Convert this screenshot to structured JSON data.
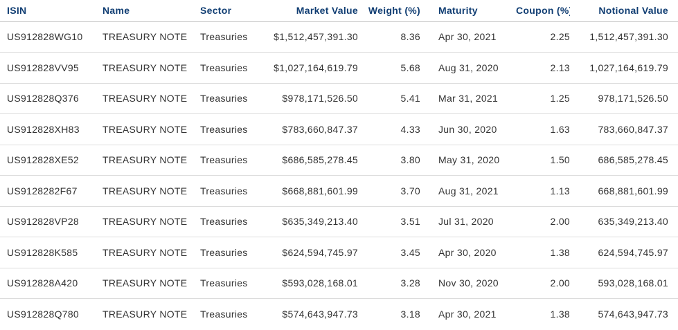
{
  "table": {
    "columns": [
      {
        "key": "isin",
        "label": "ISIN"
      },
      {
        "key": "name",
        "label": "Name"
      },
      {
        "key": "sector",
        "label": "Sector"
      },
      {
        "key": "market_value",
        "label": "Market Value"
      },
      {
        "key": "weight",
        "label": "Weight (%)"
      },
      {
        "key": "maturity",
        "label": "Maturity"
      },
      {
        "key": "coupon",
        "label": "Coupon (%)"
      },
      {
        "key": "notional_value",
        "label": "Notional Value"
      }
    ],
    "rows": [
      {
        "isin": "US912828WG10",
        "name": "TREASURY NOTE",
        "sector": "Treasuries",
        "market_value": "$1,512,457,391.30",
        "weight": "8.36",
        "maturity": "Apr 30, 2021",
        "coupon": "2.25",
        "notional_value": "1,512,457,391.30"
      },
      {
        "isin": "US912828VV95",
        "name": "TREASURY NOTE",
        "sector": "Treasuries",
        "market_value": "$1,027,164,619.79",
        "weight": "5.68",
        "maturity": "Aug 31, 2020",
        "coupon": "2.13",
        "notional_value": "1,027,164,619.79"
      },
      {
        "isin": "US912828Q376",
        "name": "TREASURY NOTE",
        "sector": "Treasuries",
        "market_value": "$978,171,526.50",
        "weight": "5.41",
        "maturity": "Mar 31, 2021",
        "coupon": "1.25",
        "notional_value": "978,171,526.50"
      },
      {
        "isin": "US912828XH83",
        "name": "TREASURY NOTE",
        "sector": "Treasuries",
        "market_value": "$783,660,847.37",
        "weight": "4.33",
        "maturity": "Jun 30, 2020",
        "coupon": "1.63",
        "notional_value": "783,660,847.37"
      },
      {
        "isin": "US912828XE52",
        "name": "TREASURY NOTE",
        "sector": "Treasuries",
        "market_value": "$686,585,278.45",
        "weight": "3.80",
        "maturity": "May 31, 2020",
        "coupon": "1.50",
        "notional_value": "686,585,278.45"
      },
      {
        "isin": "US9128282F67",
        "name": "TREASURY NOTE",
        "sector": "Treasuries",
        "market_value": "$668,881,601.99",
        "weight": "3.70",
        "maturity": "Aug 31, 2021",
        "coupon": "1.13",
        "notional_value": "668,881,601.99"
      },
      {
        "isin": "US912828VP28",
        "name": "TREASURY NOTE",
        "sector": "Treasuries",
        "market_value": "$635,349,213.40",
        "weight": "3.51",
        "maturity": "Jul 31, 2020",
        "coupon": "2.00",
        "notional_value": "635,349,213.40"
      },
      {
        "isin": "US912828K585",
        "name": "TREASURY NOTE",
        "sector": "Treasuries",
        "market_value": "$624,594,745.97",
        "weight": "3.45",
        "maturity": "Apr 30, 2020",
        "coupon": "1.38",
        "notional_value": "624,594,745.97"
      },
      {
        "isin": "US912828A420",
        "name": "TREASURY NOTE",
        "sector": "Treasuries",
        "market_value": "$593,028,168.01",
        "weight": "3.28",
        "maturity": "Nov 30, 2020",
        "coupon": "2.00",
        "notional_value": "593,028,168.01"
      },
      {
        "isin": "US912828Q780",
        "name": "TREASURY NOTE",
        "sector": "Treasuries",
        "market_value": "$574,643,947.73",
        "weight": "3.18",
        "maturity": "Apr 30, 2021",
        "coupon": "1.38",
        "notional_value": "574,643,947.73"
      }
    ]
  },
  "colors": {
    "header_text": "#113e73",
    "body_text": "#333333",
    "header_border": "#c2c2c2",
    "row_border": "#dcdcdc",
    "background": "#ffffff"
  }
}
